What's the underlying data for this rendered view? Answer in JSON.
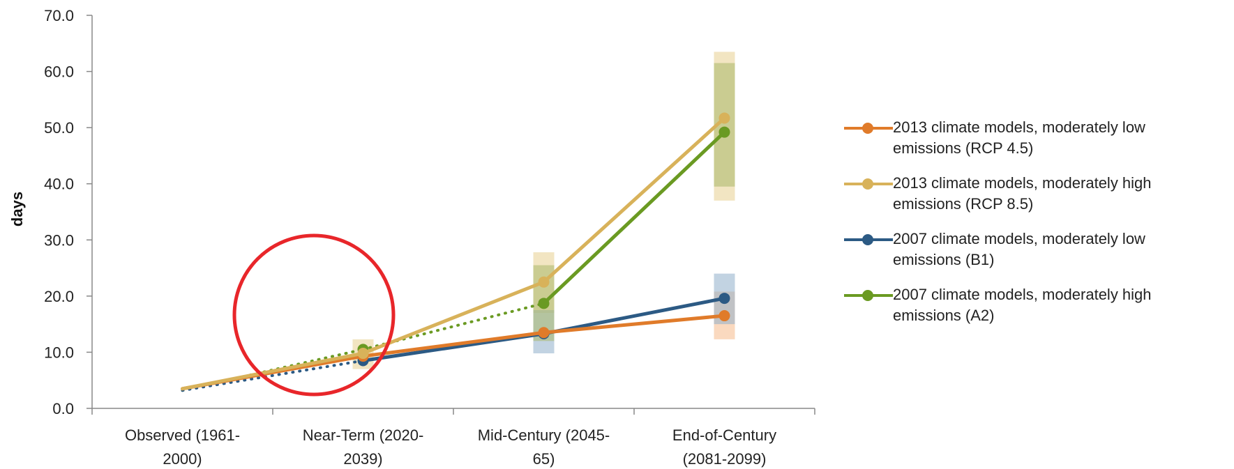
{
  "chart_data": {
    "type": "line",
    "ylabel": "days",
    "ylim": [
      0,
      70
    ],
    "yticks": [
      "0.0",
      "10.0",
      "20.0",
      "30.0",
      "40.0",
      "50.0",
      "60.0",
      "70.0"
    ],
    "categories": [
      [
        "Observed (1961-",
        "2000)"
      ],
      [
        "Near-Term (2020-",
        "2039)"
      ],
      [
        "Mid-Century (2045-",
        "65)"
      ],
      [
        "End-of-Century",
        "(2081-2099)"
      ]
    ],
    "series": [
      {
        "name": [
          "2013 climate models, moderately low",
          "emissions (RCP 4.5)"
        ],
        "color": "#e07b2a",
        "range_color": "#f5b98a",
        "values": [
          3.5,
          9.3,
          13.5,
          16.5
        ],
        "ranges": [
          null,
          null,
          null,
          [
            12.3,
            20.8
          ]
        ]
      },
      {
        "name": [
          "2013 climate models, moderately high",
          "emissions (RCP 8.5)"
        ],
        "color": "#d8b25a",
        "range_color": "#e8cf8f",
        "values": [
          3.5,
          9.8,
          22.5,
          51.7
        ],
        "ranges": [
          null,
          [
            7.0,
            12.3
          ],
          [
            17.0,
            27.8
          ],
          [
            37.0,
            63.5
          ]
        ]
      },
      {
        "name": [
          "2007 climate models, moderately low",
          "emissions (B1)"
        ],
        "color": "#2c5a84",
        "range_color": "#8faecb",
        "values": [
          3.2,
          8.5,
          13.3,
          19.6
        ],
        "ranges": [
          null,
          null,
          [
            9.8,
            17.5
          ],
          [
            15.0,
            24.0
          ]
        ],
        "dotted_segments": [
          0
        ]
      },
      {
        "name": [
          "2007 climate models, moderately high",
          "emissions (A2)"
        ],
        "color": "#6a9a22",
        "range_color": "#a9b86a",
        "values": [
          3.2,
          10.5,
          18.7,
          49.2
        ],
        "ranges": [
          null,
          null,
          [
            12.0,
            25.5
          ],
          [
            39.5,
            61.5
          ]
        ],
        "dotted_segments": [
          0,
          1
        ]
      }
    ],
    "annotation": "red circle around Near-Term (2020-2039) values"
  }
}
